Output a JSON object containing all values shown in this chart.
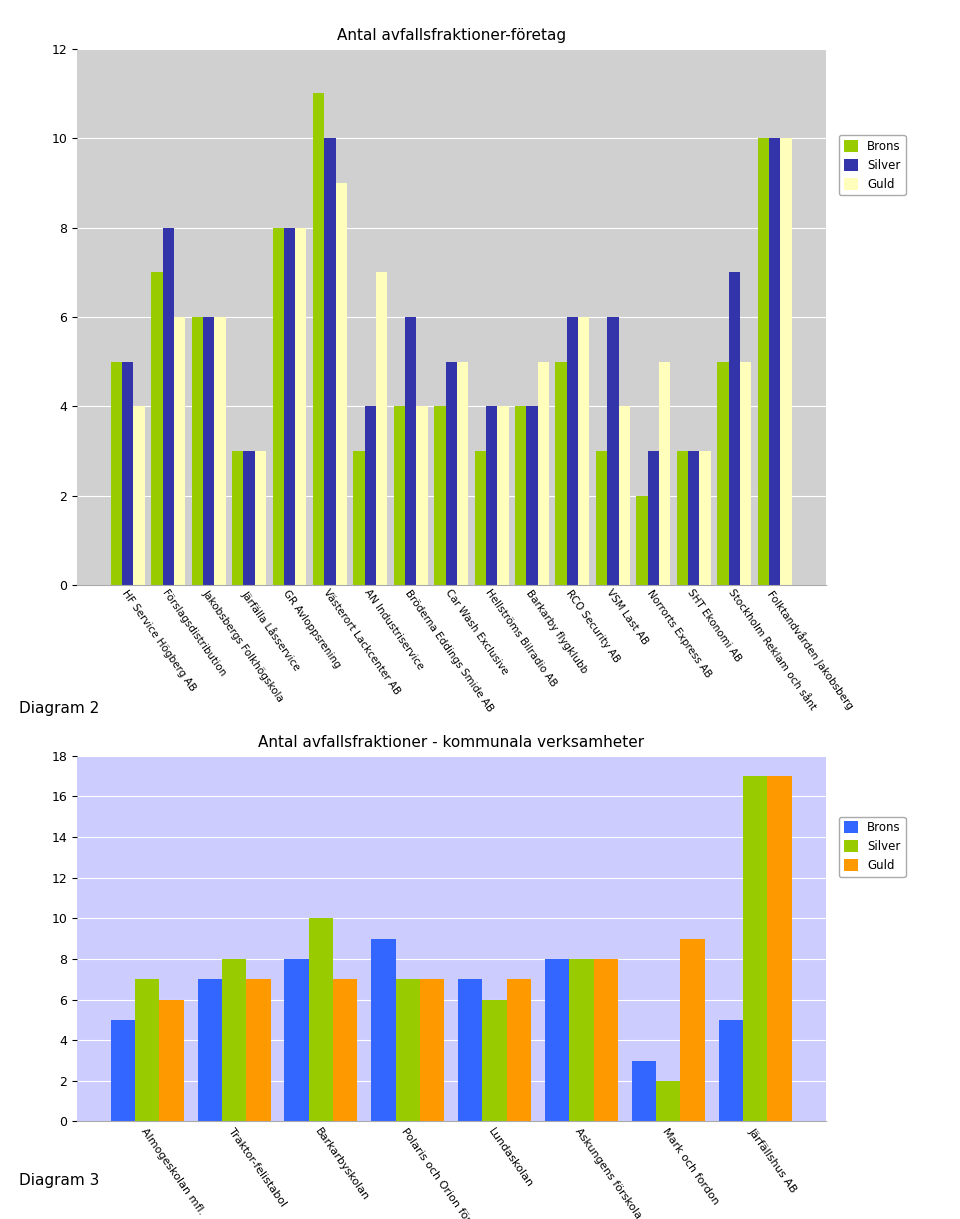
{
  "chart1": {
    "title": "Antal avfallsfraktioner-företag",
    "categories": [
      "HF Service Högberg AB",
      "Förslagsdistribution",
      "Jakobsbergs Folkhögskola",
      "Järfälla Låsservice",
      "GR Avloppsrening",
      "Västerort Lackcenter AB",
      "AN Industriservice",
      "Bröderna Eddings Smide AB",
      "Car Wash Exclusive",
      "Hellströms Bilradio AB",
      "Barkarby flygklubb",
      "RCO Security AB",
      "VSM Last AB",
      "Norrorts Express AB",
      "SHT Ekonomi AB",
      "Stockholm Reklam och sånt",
      "Folktandvården Jakobsberg"
    ],
    "brons": [
      5,
      7,
      6,
      3,
      8,
      11,
      3,
      4,
      4,
      3,
      4,
      5,
      3,
      2,
      3,
      5,
      10
    ],
    "silver": [
      5,
      8,
      6,
      3,
      8,
      10,
      4,
      6,
      5,
      4,
      4,
      6,
      6,
      3,
      3,
      7,
      10
    ],
    "guld": [
      4,
      6,
      6,
      3,
      8,
      9,
      7,
      4,
      5,
      4,
      5,
      6,
      4,
      5,
      3,
      5,
      10
    ],
    "ylim": [
      0,
      12
    ],
    "yticks": [
      0,
      2,
      4,
      6,
      8,
      10,
      12
    ],
    "brons_color": "#99cc00",
    "silver_color": "#3333aa",
    "guld_color": "#ffffbb",
    "bg_color": "#d0d0d0",
    "legend_labels": [
      "Brons",
      "Silver",
      "Guld"
    ]
  },
  "chart2": {
    "title": "Antal avfallsfraktioner - kommunala verksamheter",
    "categories": [
      "Almogeskolаn mfl.",
      "Traktor-felistаbol",
      "Barkarbyskolаn",
      "Polaris och Orion förskolаn",
      "Lundаskolаn",
      "Askungens förskola mfl.",
      "Mark och fordon",
      "Järfällshus AB"
    ],
    "brons": [
      5,
      7,
      8,
      9,
      7,
      8,
      3,
      5
    ],
    "silver": [
      7,
      8,
      10,
      7,
      6,
      8,
      2,
      17
    ],
    "guld": [
      6,
      7,
      7,
      7,
      7,
      8,
      9,
      17
    ],
    "ylim": [
      0,
      18
    ],
    "yticks": [
      0,
      2,
      4,
      6,
      8,
      10,
      12,
      14,
      16,
      18
    ],
    "brons_color": "#3366ff",
    "silver_color": "#99cc00",
    "guld_color": "#ff9900",
    "bg_color": "#ccccff",
    "legend_labels": [
      "Brons",
      "Silver",
      "Guld"
    ]
  },
  "diagram2_label": "Diagram 2",
  "diagram3_label": "Diagram 3"
}
